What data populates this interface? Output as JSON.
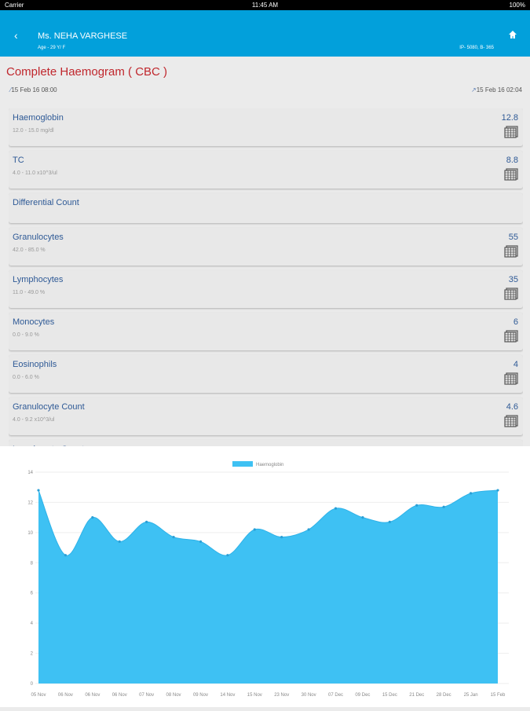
{
  "status_bar": {
    "carrier": "Carrier",
    "time": "11:45 AM",
    "battery": "100%"
  },
  "header": {
    "patient_name": "Ms. NEHA VARGHESE",
    "age": "Age - 29 Y/ F",
    "ip": "IP- 5080, B- 365"
  },
  "report": {
    "title": "Complete Haemogram ( CBC )",
    "collected": "15 Feb 16 08:00",
    "reported": "15 Feb 16 02:04"
  },
  "tests": [
    {
      "name": "Haemoglobin",
      "range": "12.0 - 15.0 mg/dl",
      "value": "12.8"
    },
    {
      "name": "TC",
      "range": "4.0 - 11.0 x10^3/ul",
      "value": "8.8"
    },
    {
      "name": "Differential Count",
      "range": "",
      "value": ""
    },
    {
      "name": "Granulocytes",
      "range": "42.0 - 85.0 %",
      "value": "55"
    },
    {
      "name": "Lymphocytes",
      "range": "11.0 - 49.0 %",
      "value": "35"
    },
    {
      "name": "Monocytes",
      "range": "0.0 - 9.0 %",
      "value": "6"
    },
    {
      "name": "Eosinophils",
      "range": "0.0 - 6.0 %",
      "value": "4"
    },
    {
      "name": "Granulocyte Count",
      "range": "4.0 - 9.2 x10^3/ul",
      "value": "4.6"
    },
    {
      "name": "Lymphocyte Count",
      "range": "",
      "value": ""
    }
  ],
  "chart_data": {
    "type": "area",
    "legend": "Haemoglobin",
    "legend_position": "top",
    "color": "#3ec1f3",
    "categories": [
      "05 Nov",
      "06 Nov",
      "06 Nov",
      "06 Nov",
      "07 Nov",
      "08 Nov",
      "09 Nov",
      "14 Nov",
      "15 Nov",
      "23 Nov",
      "30 Nov",
      "07 Dec",
      "09 Dec",
      "15 Dec",
      "21 Dec",
      "28 Dec",
      "25 Jan",
      "15 Feb"
    ],
    "values": [
      12.8,
      8.5,
      11.0,
      9.4,
      10.7,
      9.7,
      9.4,
      8.5,
      10.2,
      9.7,
      10.2,
      11.6,
      11.0,
      10.7,
      11.8,
      11.7,
      12.6,
      12.8
    ],
    "ylim": [
      0,
      14
    ],
    "yticks": [
      0,
      2,
      4,
      6,
      8,
      10,
      12,
      14
    ],
    "grid": true
  }
}
